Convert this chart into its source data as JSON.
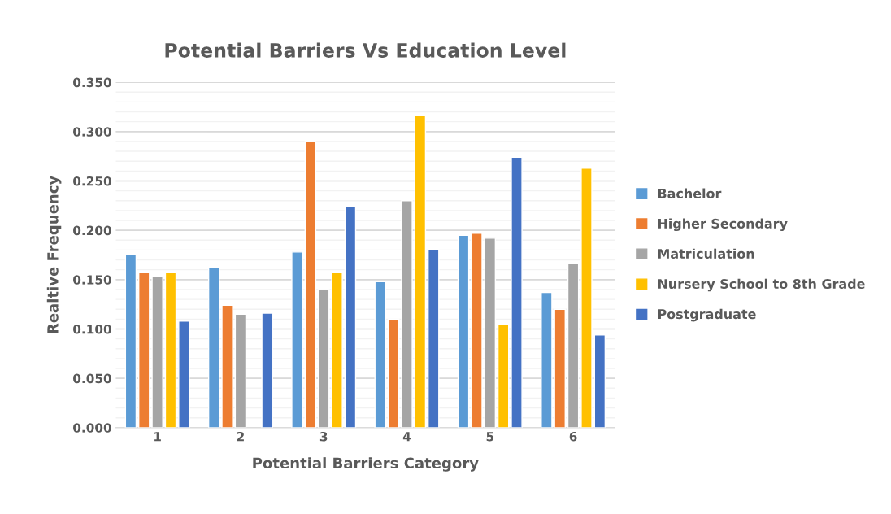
{
  "chart_data": {
    "type": "bar",
    "title": "Potential Barriers Vs Education Level",
    "xlabel": "Potential Barriers Category",
    "ylabel": "Realtive Frequency",
    "categories": [
      "1",
      "2",
      "3",
      "4",
      "5",
      "6"
    ],
    "series": [
      {
        "name": "Bachelor",
        "color": "#5b9bd5",
        "values": [
          0.176,
          0.162,
          0.178,
          0.148,
          0.195,
          0.137
        ]
      },
      {
        "name": "Higher Secondary",
        "color": "#ed7d31",
        "values": [
          0.157,
          0.124,
          0.29,
          0.11,
          0.197,
          0.12
        ]
      },
      {
        "name": "Matriculation",
        "color": "#a5a5a5",
        "values": [
          0.153,
          0.115,
          0.14,
          0.23,
          0.192,
          0.166
        ]
      },
      {
        "name": "Nursery School to 8th Grade",
        "color": "#ffc000",
        "values": [
          0.157,
          null,
          0.157,
          0.316,
          0.105,
          0.263
        ]
      },
      {
        "name": "Postgraduate",
        "color": "#4472c4",
        "values": [
          0.108,
          0.116,
          0.224,
          0.181,
          0.274,
          0.094
        ]
      }
    ],
    "ylim": [
      0,
      0.35
    ],
    "yticks": [
      {
        "value": 0,
        "label": "0.000"
      },
      {
        "value": 0.05,
        "label": "0.050"
      },
      {
        "value": 0.1,
        "label": "0.100"
      },
      {
        "value": 0.15,
        "label": "0.150"
      },
      {
        "value": 0.2,
        "label": "0.200"
      },
      {
        "value": 0.25,
        "label": "0.250"
      },
      {
        "value": 0.3,
        "label": "0.300"
      },
      {
        "value": 0.35,
        "label": "0.350"
      }
    ],
    "grid": "y",
    "legend": "right"
  }
}
